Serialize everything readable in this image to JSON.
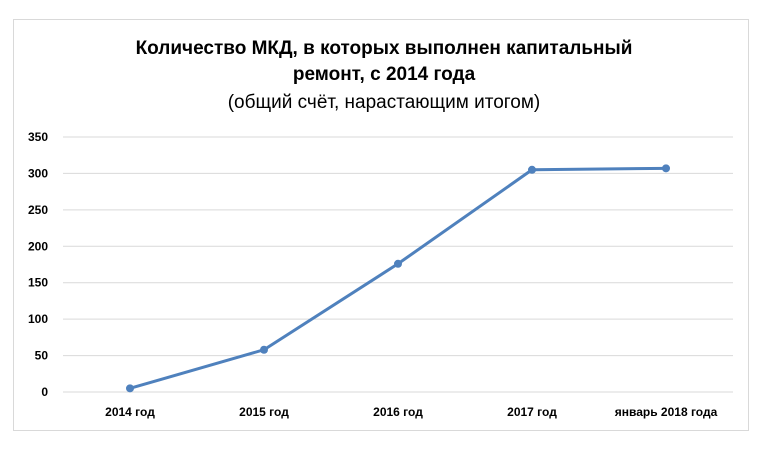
{
  "chart_data": {
    "type": "line",
    "title": "Количество МКД, в которых выполнен капитальный ремонт, с 2014 года",
    "title_lines": [
      "Количество МКД, в которых выполнен капитальный",
      "ремонт, с 2014 года"
    ],
    "subtitle": "(общий счёт, нарастающим итогом)",
    "categories": [
      "2014 год",
      "2015 год",
      "2016 год",
      "2017 год",
      "январь 2018 года"
    ],
    "series": [
      {
        "values": [
          5,
          58,
          176,
          305,
          307
        ],
        "color": "#4f81bd"
      }
    ],
    "xlabel": "",
    "ylabel": "",
    "ylim": [
      0,
      350
    ],
    "yticks": [
      0,
      50,
      100,
      150,
      200,
      250,
      300,
      350
    ],
    "grid": true,
    "legend": "none"
  }
}
